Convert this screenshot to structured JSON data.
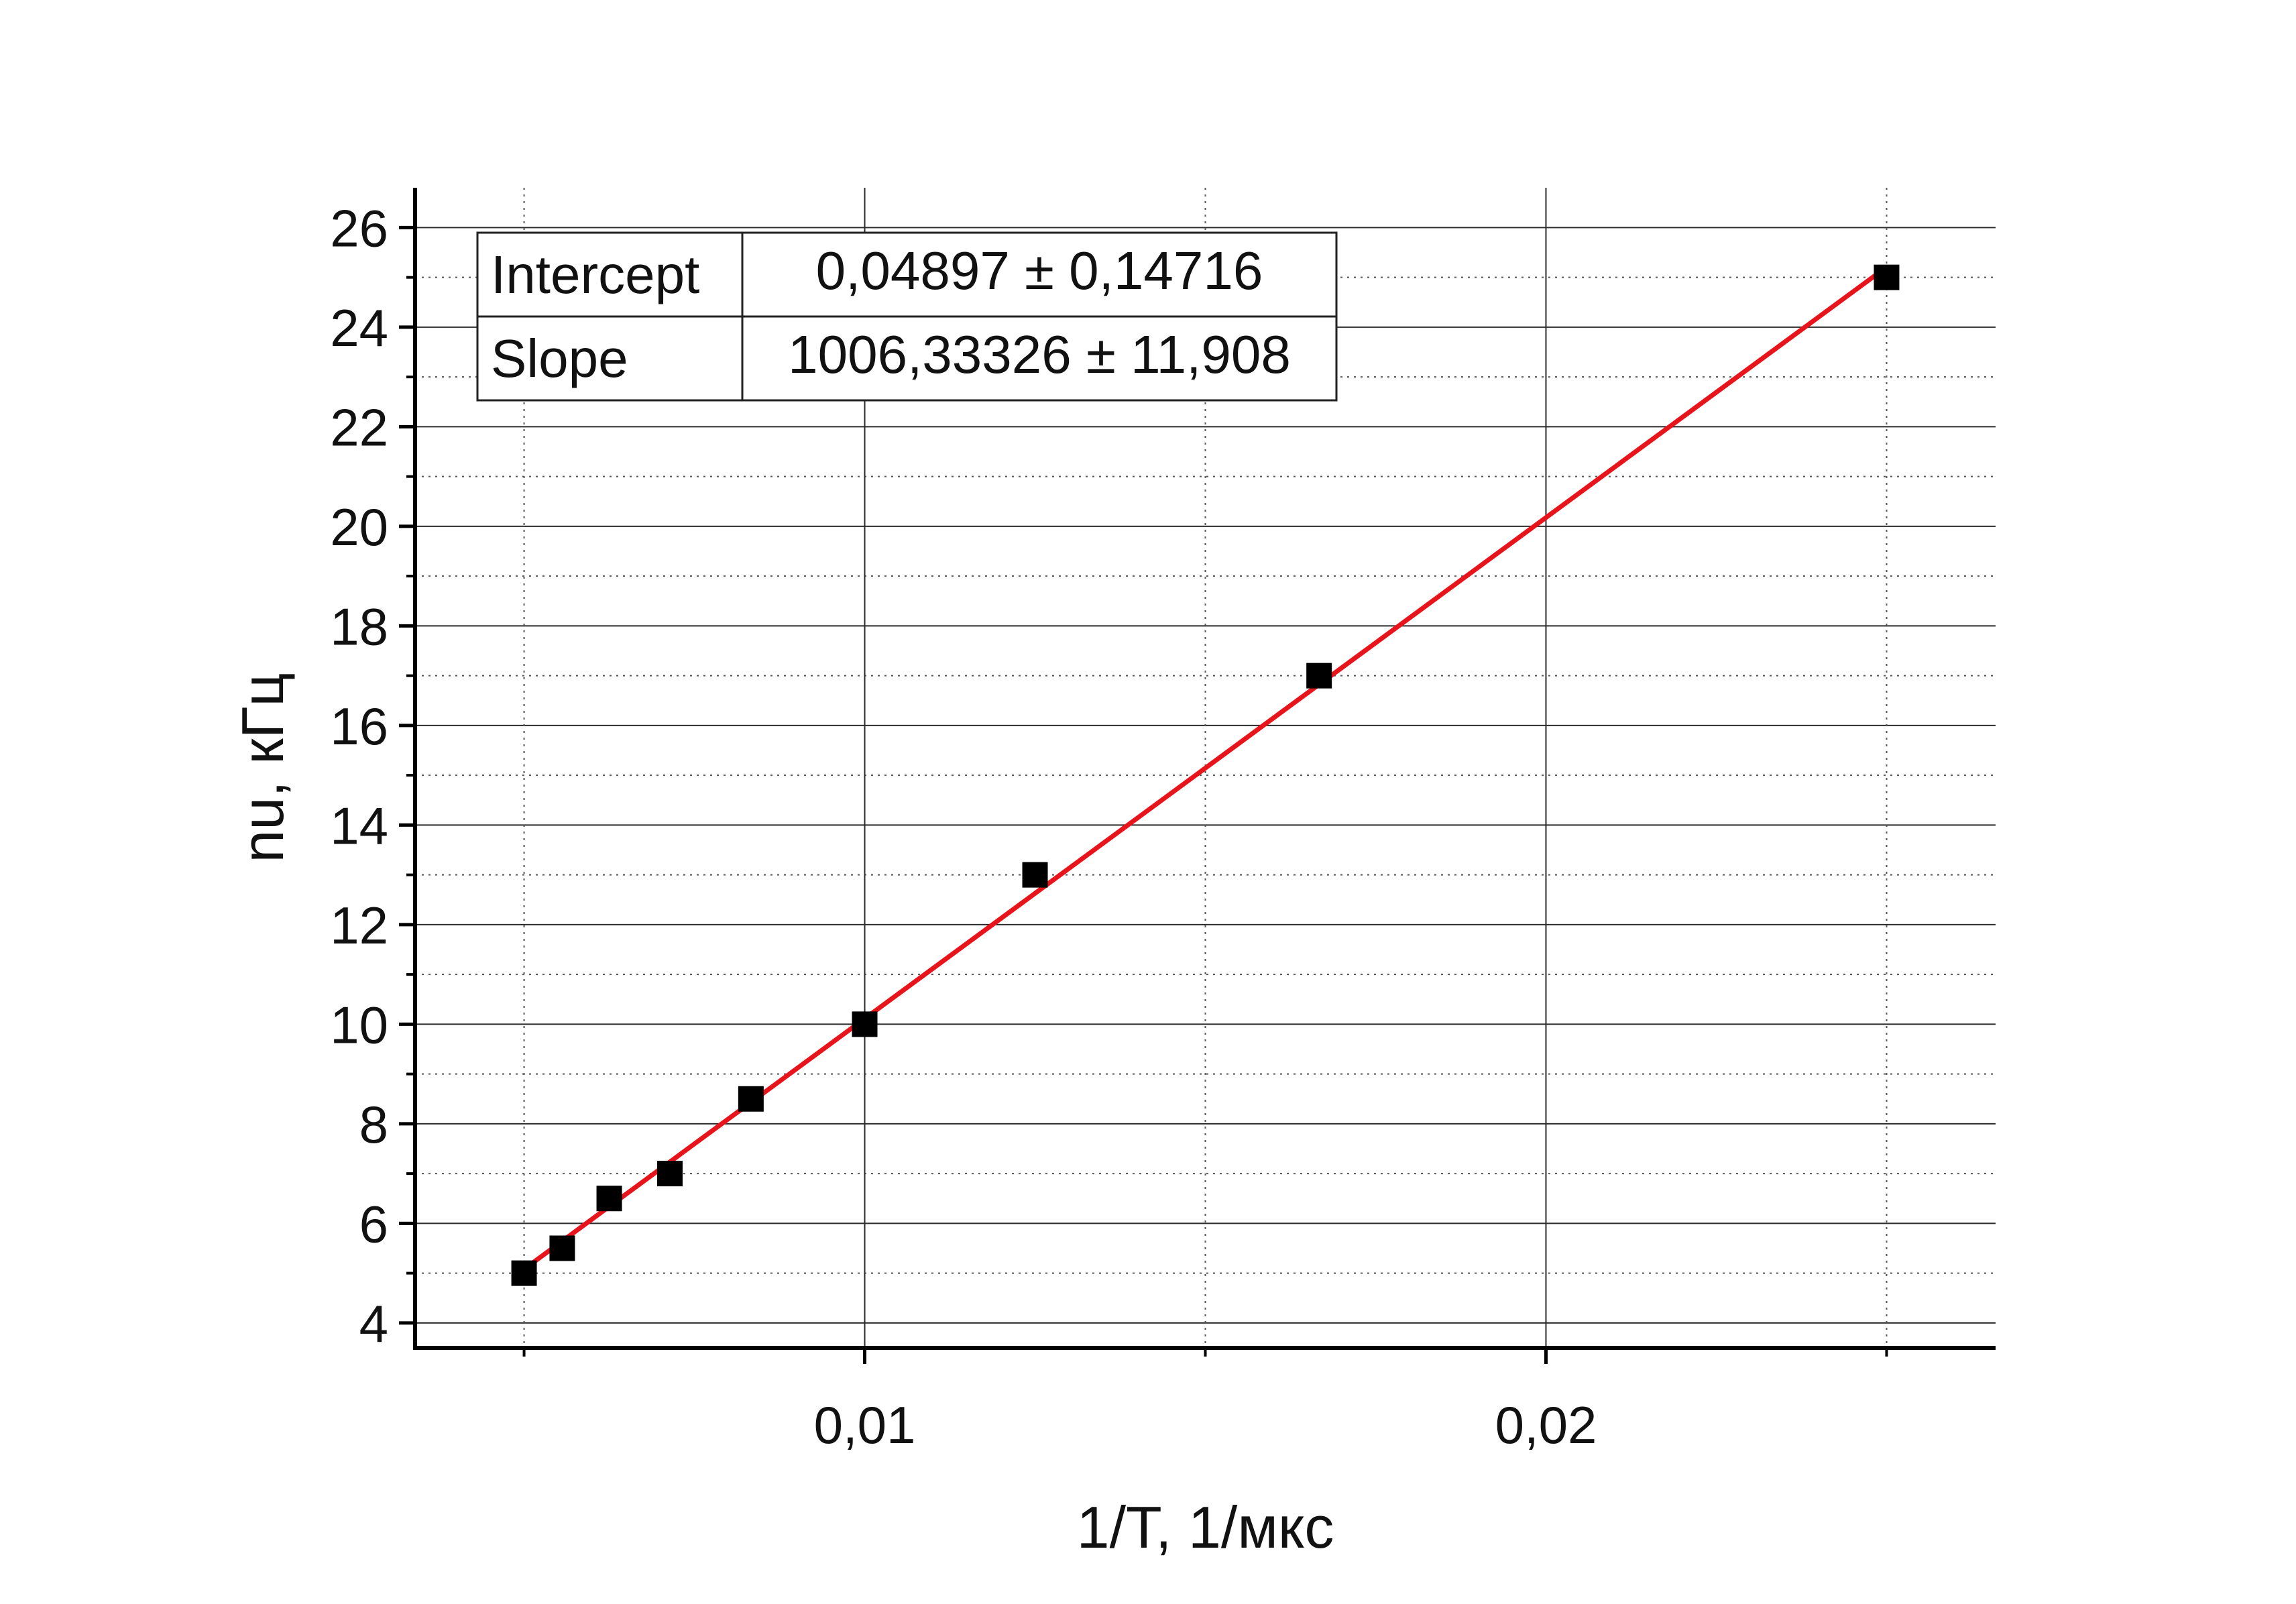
{
  "chart_data": {
    "type": "scatter",
    "xlabel": "1/T, 1/мкс",
    "ylabel": "nu, кГц",
    "xlim": [
      0.0034,
      0.0266
    ],
    "ylim": [
      3.5,
      26.8
    ],
    "x_ticks": [
      {
        "value": 0.01,
        "label": "0,01"
      },
      {
        "value": 0.02,
        "label": "0,02"
      }
    ],
    "x_minor_ticks": [
      0.005,
      0.015,
      0.025
    ],
    "y_ticks": [
      {
        "value": 4,
        "label": "4"
      },
      {
        "value": 6,
        "label": "6"
      },
      {
        "value": 8,
        "label": "8"
      },
      {
        "value": 10,
        "label": "10"
      },
      {
        "value": 12,
        "label": "12"
      },
      {
        "value": 14,
        "label": "14"
      },
      {
        "value": 16,
        "label": "16"
      },
      {
        "value": 18,
        "label": "18"
      },
      {
        "value": 20,
        "label": "20"
      },
      {
        "value": 22,
        "label": "22"
      },
      {
        "value": 24,
        "label": "24"
      },
      {
        "value": 26,
        "label": "26"
      }
    ],
    "y_minor_ticks": [
      5,
      7,
      9,
      11,
      13,
      15,
      17,
      19,
      21,
      23,
      25
    ],
    "grid": true,
    "series": [
      {
        "kind": "scatter",
        "marker": "square",
        "color": "#000000",
        "x": [
          0.005,
          0.00556,
          0.00625,
          0.00714,
          0.00833,
          0.01,
          0.0125,
          0.01667,
          0.025
        ],
        "y": [
          5,
          5.5,
          6.5,
          7,
          8.5,
          10,
          13,
          17,
          25
        ]
      },
      {
        "kind": "line",
        "color": "#e8141b",
        "intercept": 0.04897,
        "slope": 1006.33326,
        "x_range": [
          0.005,
          0.025
        ]
      }
    ],
    "fit_table": {
      "rows": [
        {
          "label": "Intercept",
          "value": "0,04897 ± 0,14716"
        },
        {
          "label": "Slope",
          "value": "1006,33326 ± 11,908"
        }
      ],
      "placement": "top-left"
    }
  }
}
